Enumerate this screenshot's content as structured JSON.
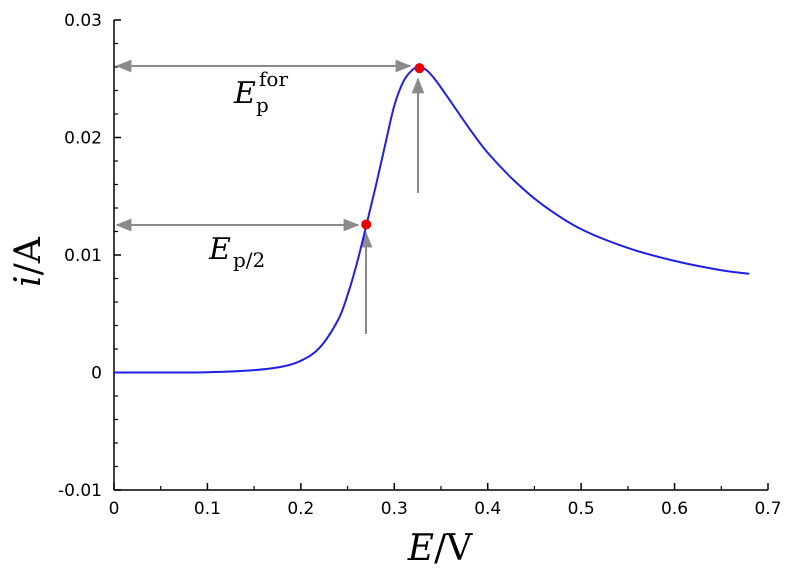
{
  "chart_data": {
    "type": "line",
    "title": "",
    "xlabel": {
      "var": "E",
      "unit": "V"
    },
    "ylabel": {
      "var": "i",
      "unit": "A"
    },
    "xlim": [
      0,
      0.7
    ],
    "ylim": [
      -0.01,
      0.03
    ],
    "x_ticks": [
      0,
      0.1,
      0.2,
      0.3,
      0.4,
      0.5,
      0.6,
      0.7
    ],
    "x_tick_labels": [
      "0",
      "0.1",
      "0.2",
      "0.3",
      "0.4",
      "0.5",
      "0.6",
      "0.7"
    ],
    "y_ticks": [
      -0.01,
      0,
      0.01,
      0.02,
      0.03
    ],
    "y_tick_labels": [
      "-0.01",
      "0",
      "0.01",
      "0.02",
      "0.03"
    ],
    "grid": false,
    "series": [
      {
        "color": "#1f1fe6",
        "x": [
          0,
          0.05,
          0.1,
          0.15,
          0.18,
          0.2,
          0.22,
          0.24,
          0.25,
          0.26,
          0.27,
          0.28,
          0.29,
          0.3,
          0.31,
          0.32,
          0.327,
          0.335,
          0.345,
          0.36,
          0.38,
          0.4,
          0.43,
          0.46,
          0.5,
          0.55,
          0.6,
          0.65,
          0.68
        ],
        "y": [
          0,
          0,
          2e-05,
          0.0002,
          0.0005,
          0.001,
          0.0021,
          0.0045,
          0.0066,
          0.0093,
          0.0125,
          0.0158,
          0.0193,
          0.0227,
          0.0248,
          0.0258,
          0.026,
          0.0257,
          0.0248,
          0.0231,
          0.0208,
          0.0187,
          0.0162,
          0.0142,
          0.0122,
          0.0106,
          0.0095,
          0.0087,
          0.0084
        ]
      }
    ],
    "points": [
      {
        "name": "half-peak",
        "x": 0.27,
        "y": 0.0126,
        "color": "#e60000"
      },
      {
        "name": "peak",
        "x": 0.327,
        "y": 0.0259,
        "color": "#e60000"
      }
    ],
    "annotations": {
      "peak_label": {
        "main": "E",
        "sub": "p",
        "sup": "for"
      },
      "half_peak_label": {
        "main": "E",
        "sub": "p/2"
      }
    }
  }
}
